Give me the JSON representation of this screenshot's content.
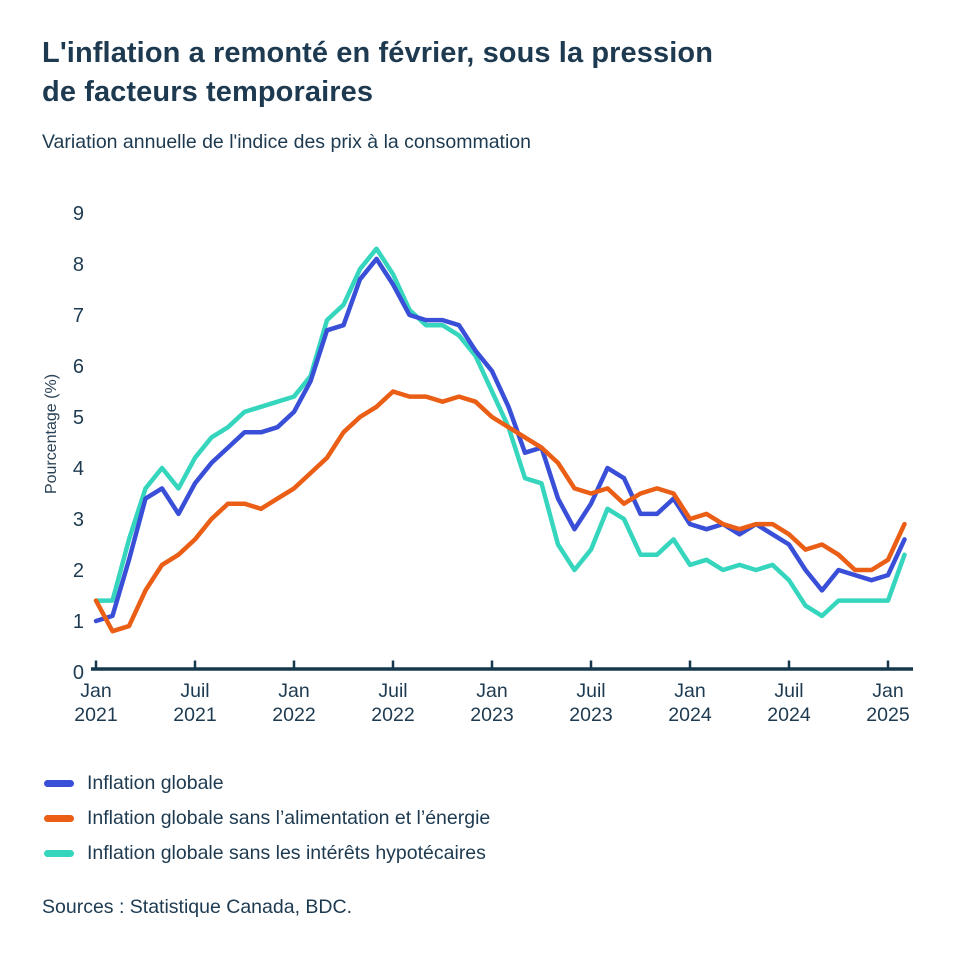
{
  "header": {
    "title_lines": [
      "L'inflation a remonté en février, sous la pression",
      "de facteurs temporaires"
    ],
    "subtitle": "Variation annuelle de l'indice des prix à la consommation"
  },
  "colors": {
    "text": "#1d3a50",
    "axis": "#16384e",
    "accent_blue": "#3a4fd8",
    "accent_orange": "#ea5e15",
    "accent_teal": "#35d6bd"
  },
  "chart_data": {
    "type": "line",
    "title": "L'inflation a remonté en février, sous la pression de facteurs temporaires",
    "subtitle": "Variation annuelle de l'indice des prix à la consommation",
    "ylabel": "Pourcentage (%)",
    "xlabel": "",
    "ylim": [
      0,
      9
    ],
    "y_ticks": [
      0,
      1,
      2,
      3,
      4,
      5,
      6,
      7,
      8,
      9
    ],
    "grid": false,
    "legend_position": "below-chart",
    "x_range": {
      "start": "2021-01",
      "end": "2025-02",
      "frequency": "monthly"
    },
    "x_ticks": [
      {
        "month": "Jan",
        "year": "2021"
      },
      {
        "month": "Juil",
        "year": "2021"
      },
      {
        "month": "Jan",
        "year": "2022"
      },
      {
        "month": "Juil",
        "year": "2022"
      },
      {
        "month": "Jan",
        "year": "2023"
      },
      {
        "month": "Juil",
        "year": "2023"
      },
      {
        "month": "Jan",
        "year": "2024"
      },
      {
        "month": "Juil",
        "year": "2024"
      },
      {
        "month": "Jan",
        "year": "2025"
      }
    ],
    "series": [
      {
        "name": "Inflation globale",
        "color": "#3a4fd8",
        "values": [
          1.0,
          1.1,
          2.2,
          3.4,
          3.6,
          3.1,
          3.7,
          4.1,
          4.4,
          4.7,
          4.7,
          4.8,
          5.1,
          5.7,
          6.7,
          6.8,
          7.7,
          8.1,
          7.6,
          7.0,
          6.9,
          6.9,
          6.8,
          6.3,
          5.9,
          5.2,
          4.3,
          4.4,
          3.4,
          2.8,
          3.3,
          4.0,
          3.8,
          3.1,
          3.1,
          3.4,
          2.9,
          2.8,
          2.9,
          2.7,
          2.9,
          2.7,
          2.5,
          2.0,
          1.6,
          2.0,
          1.9,
          1.8,
          1.9,
          2.6
        ]
      },
      {
        "name": "Inflation globale sans l’alimentation et l’énergie",
        "color": "#ea5e15",
        "values": [
          1.4,
          0.8,
          0.9,
          1.6,
          2.1,
          2.3,
          2.6,
          3.0,
          3.3,
          3.3,
          3.2,
          3.4,
          3.6,
          3.9,
          4.2,
          4.7,
          5.0,
          5.2,
          5.5,
          5.4,
          5.4,
          5.3,
          5.4,
          5.3,
          5.0,
          4.8,
          4.6,
          4.4,
          4.1,
          3.6,
          3.5,
          3.6,
          3.3,
          3.5,
          3.6,
          3.5,
          3.0,
          3.1,
          2.9,
          2.8,
          2.9,
          2.9,
          2.7,
          2.4,
          2.5,
          2.3,
          2.0,
          2.0,
          2.2,
          2.9
        ]
      },
      {
        "name": "Inflation globale sans les intérêts hypotécaires",
        "color": "#35d6bd",
        "values": [
          1.4,
          1.4,
          2.6,
          3.6,
          4.0,
          3.6,
          4.2,
          4.6,
          4.8,
          5.1,
          5.2,
          5.3,
          5.4,
          5.8,
          6.9,
          7.2,
          7.9,
          8.3,
          7.8,
          7.1,
          6.8,
          6.8,
          6.6,
          6.2,
          5.5,
          4.8,
          3.8,
          3.7,
          2.5,
          2.0,
          2.4,
          3.2,
          3.0,
          2.3,
          2.3,
          2.6,
          2.1,
          2.2,
          2.0,
          2.1,
          2.0,
          2.1,
          1.8,
          1.3,
          1.1,
          1.4,
          1.4,
          1.4,
          1.4,
          2.3
        ]
      }
    ]
  },
  "footer": {
    "sources": "Sources : Statistique Canada, BDC."
  }
}
